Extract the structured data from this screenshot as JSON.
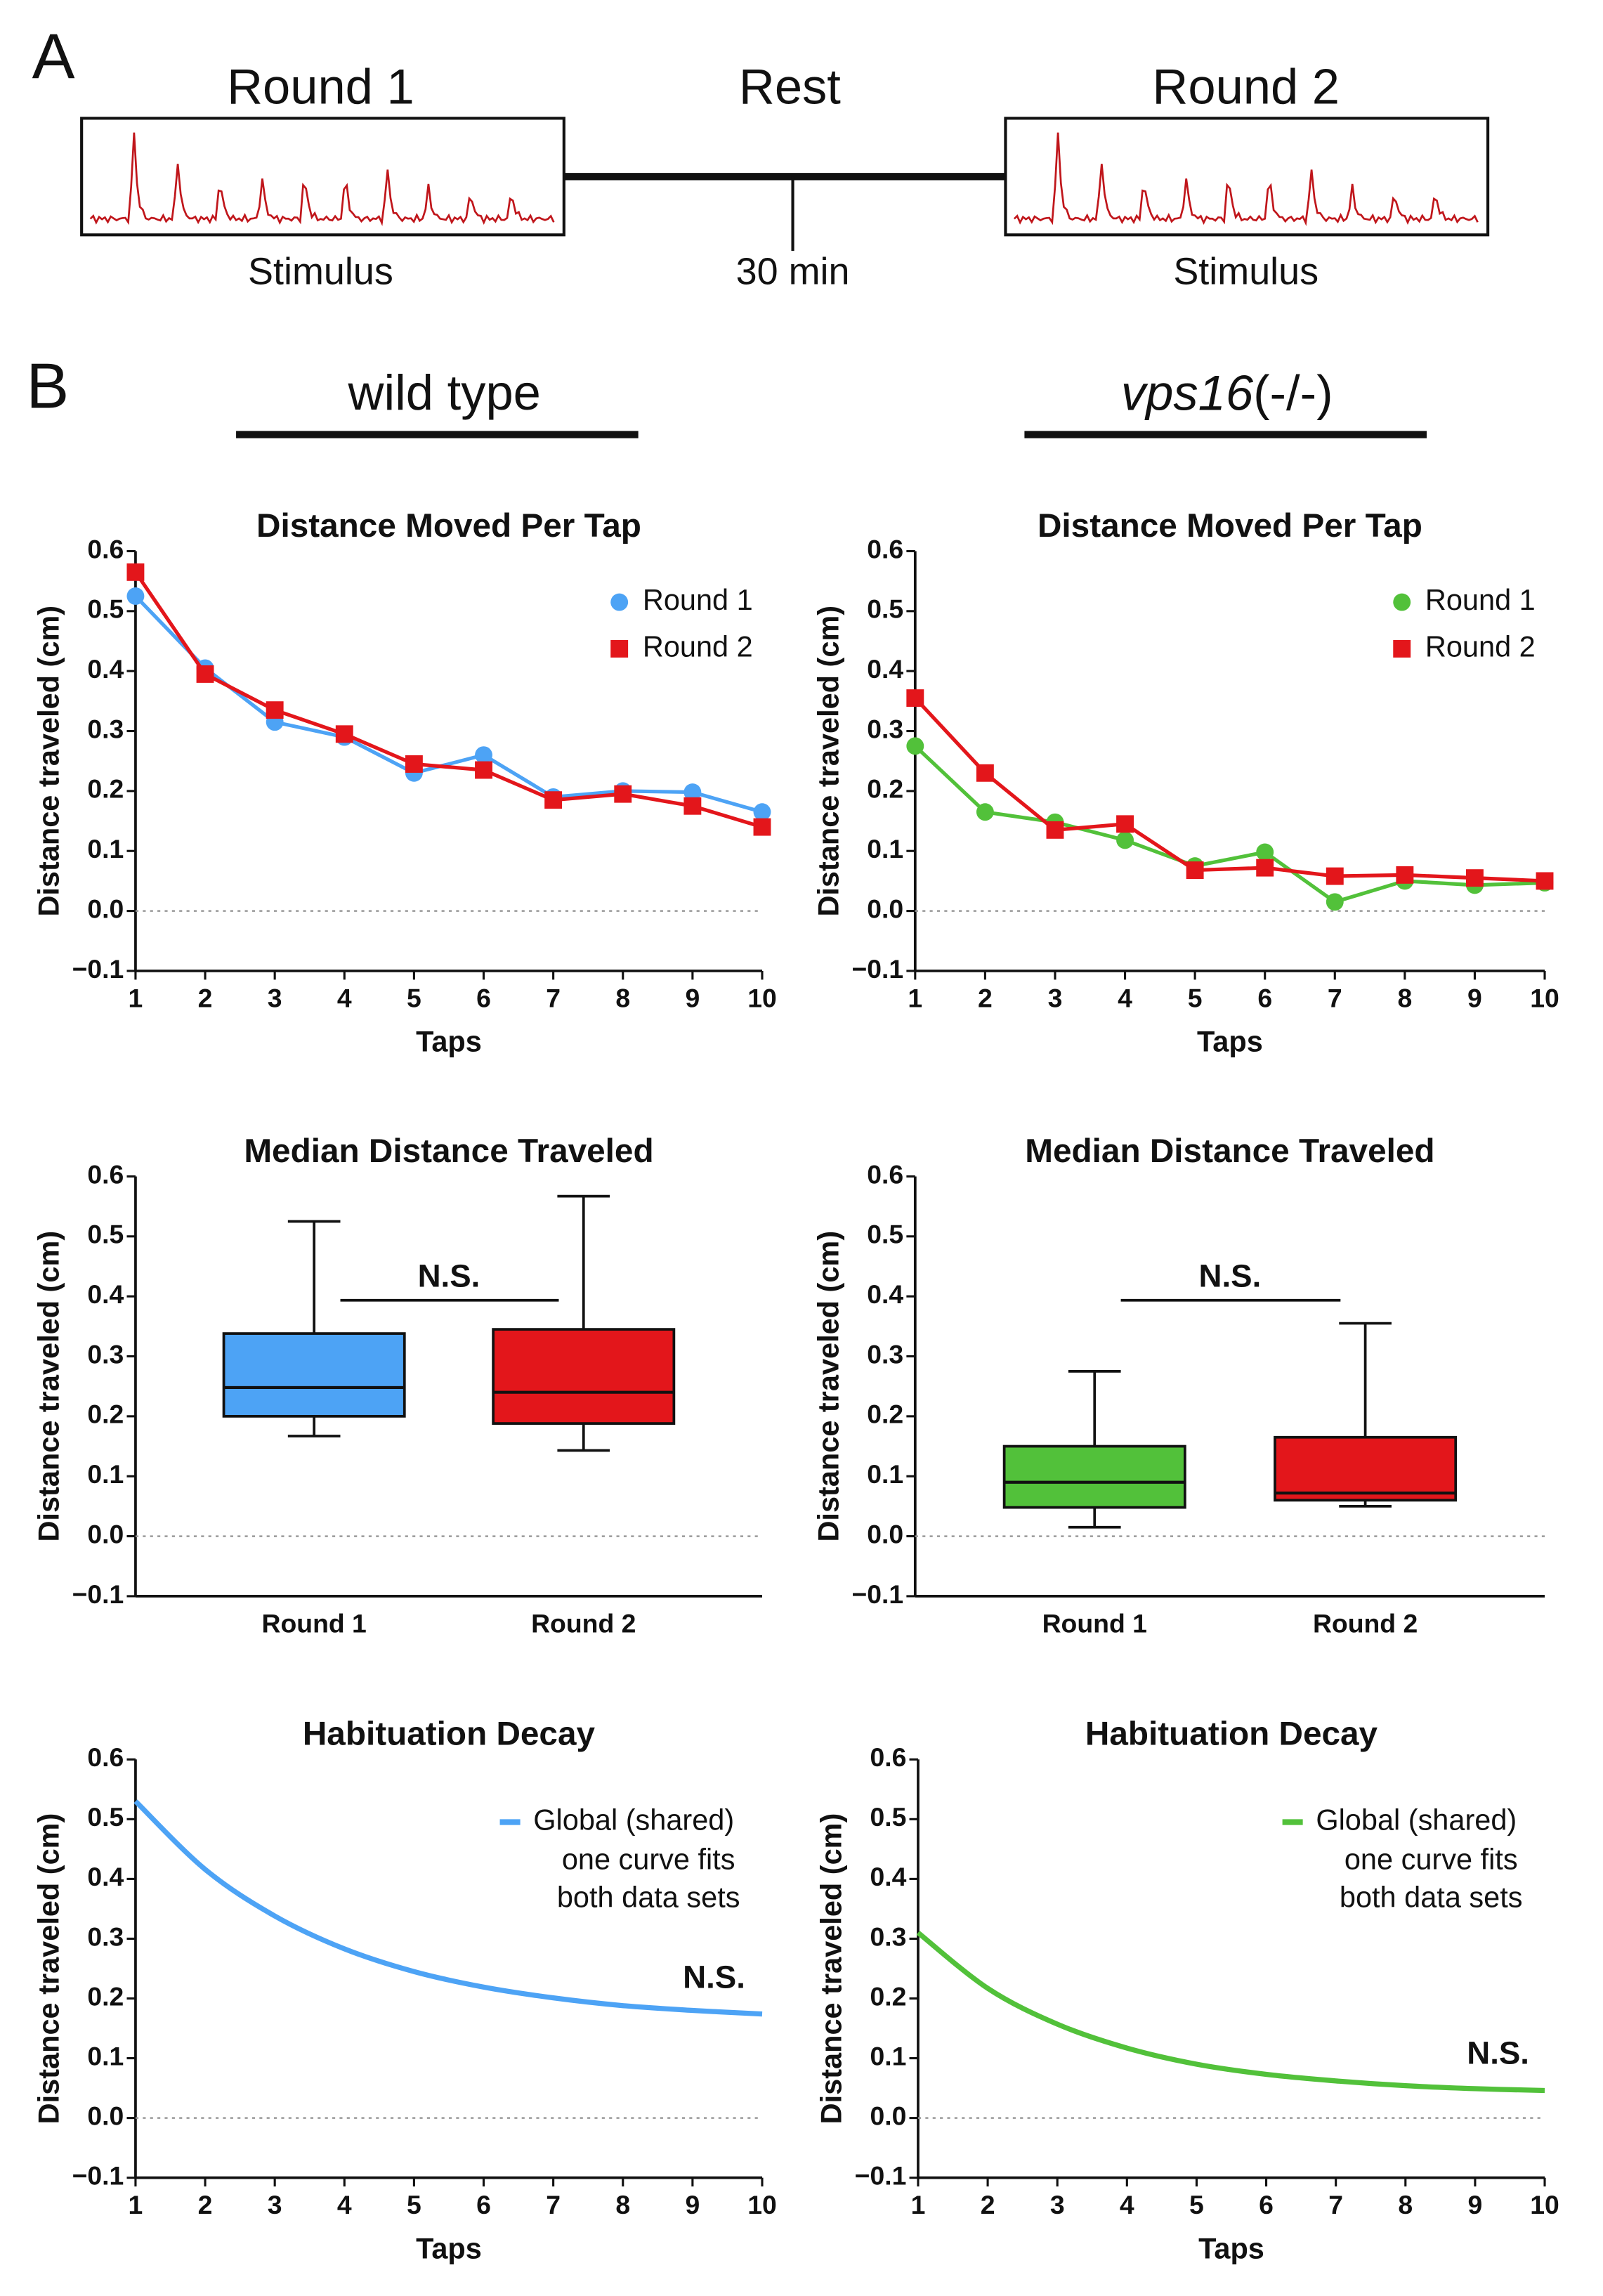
{
  "figure": {
    "panel_a": "A",
    "round_1": "Round 1",
    "rest": "Rest",
    "round_2": "Round 2",
    "stimulus_1": "Stimulus",
    "rest_duration": "30 min",
    "stimulus_2": "Stimulus",
    "panel_b": "B",
    "wild_type": "wild type",
    "mutant_name": "vps16",
    "mutant_suffix": "(-/-)"
  },
  "chart_data": [
    {
      "type": "line",
      "title": "Distance Moved Per Tap",
      "ylabel": "Distance traveled (cm)",
      "xlabel": "Taps",
      "x": [
        1,
        2,
        3,
        4,
        5,
        6,
        7,
        8,
        9,
        10
      ],
      "series": [
        {
          "name": "Round 1",
          "color": "#4da3f5",
          "marker": "circle",
          "values": [
            0.525,
            0.405,
            0.315,
            0.29,
            0.23,
            0.26,
            0.19,
            0.2,
            0.198,
            0.165
          ]
        },
        {
          "name": "Round 2",
          "color": "#e3161b",
          "marker": "square",
          "values": [
            0.565,
            0.395,
            0.335,
            0.295,
            0.245,
            0.235,
            0.185,
            0.195,
            0.175,
            0.14
          ]
        }
      ],
      "xlim": [
        1,
        10
      ],
      "xticks": [
        1,
        2,
        3,
        4,
        5,
        6,
        7,
        8,
        9,
        10
      ],
      "ylim": [
        -0.1,
        0.6
      ],
      "yticks": [
        {
          "value": -0.1,
          "label": "−0.1"
        },
        {
          "value": 0,
          "label": "0.0"
        },
        0.1,
        0.2,
        0.3,
        0.4,
        0.5,
        0.6
      ],
      "zero_line": true,
      "legend": "upper right"
    },
    {
      "type": "line",
      "title": "Distance Moved Per Tap",
      "ylabel": "Distance traveled (cm)",
      "xlabel": "Taps",
      "x": [
        1,
        2,
        3,
        4,
        5,
        6,
        7,
        8,
        9,
        10
      ],
      "series": [
        {
          "name": "Round 1",
          "color": "#52c13a",
          "marker": "circle",
          "values": [
            0.275,
            0.165,
            0.148,
            0.118,
            0.075,
            0.098,
            0.015,
            0.05,
            0.043,
            0.047
          ]
        },
        {
          "name": "Round 2",
          "color": "#e3161b",
          "marker": "square",
          "values": [
            0.355,
            0.23,
            0.135,
            0.145,
            0.068,
            0.072,
            0.058,
            0.06,
            0.055,
            0.05
          ]
        }
      ],
      "xlim": [
        1,
        10
      ],
      "xticks": [
        1,
        2,
        3,
        4,
        5,
        6,
        7,
        8,
        9,
        10
      ],
      "ylim": [
        -0.1,
        0.6
      ],
      "yticks": [
        {
          "value": -0.1,
          "label": "−0.1"
        },
        {
          "value": 0,
          "label": "0.0"
        },
        0.1,
        0.2,
        0.3,
        0.4,
        0.5,
        0.6
      ],
      "zero_line": true,
      "legend": "upper right"
    },
    {
      "type": "box",
      "title": "Median Distance Traveled",
      "ylabel": "Distance traveled (cm)",
      "categories": [
        "Round 1",
        "Round 2"
      ],
      "colors": [
        "#4da3f5",
        "#e3161b"
      ],
      "boxes": [
        {
          "min": 0.167,
          "q1": 0.2,
          "median": 0.248,
          "q3": 0.338,
          "max": 0.525
        },
        {
          "min": 0.143,
          "q1": 0.188,
          "median": 0.24,
          "q3": 0.345,
          "max": 0.567
        }
      ],
      "significance": "N.S.",
      "ylim": [
        -0.1,
        0.6
      ],
      "yticks": [
        {
          "value": -0.1,
          "label": "−0.1"
        },
        {
          "value": 0,
          "label": "0.0"
        },
        0.1,
        0.2,
        0.3,
        0.4,
        0.5,
        0.6
      ],
      "zero_line": true
    },
    {
      "type": "box",
      "title": "Median Distance Traveled",
      "ylabel": "Distance traveled (cm)",
      "categories": [
        "Round 1",
        "Round 2"
      ],
      "colors": [
        "#52c13a",
        "#e3161b"
      ],
      "boxes": [
        {
          "min": 0.015,
          "q1": 0.048,
          "median": 0.09,
          "q3": 0.15,
          "max": 0.275
        },
        {
          "min": 0.05,
          "q1": 0.06,
          "median": 0.072,
          "q3": 0.165,
          "max": 0.355
        }
      ],
      "significance": "N.S.",
      "ylim": [
        -0.1,
        0.6
      ],
      "yticks": [
        {
          "value": -0.1,
          "label": "−0.1"
        },
        {
          "value": 0,
          "label": "0.0"
        },
        0.1,
        0.2,
        0.3,
        0.4,
        0.5,
        0.6
      ],
      "zero_line": true
    },
    {
      "type": "curve",
      "title": "Habituation Decay",
      "ylabel": "Distance traveled (cm)",
      "xlabel": "Taps",
      "x": [
        1,
        2,
        3,
        4,
        5,
        6,
        7,
        8,
        9,
        10
      ],
      "series": [
        {
          "name": "Global (shared)",
          "color": "#4da3f5",
          "values": [
            0.53,
            0.416,
            0.338,
            0.283,
            0.245,
            0.219,
            0.201,
            0.188,
            0.18,
            0.174
          ]
        }
      ],
      "legend_note": [
        "one curve fits",
        "both data sets"
      ],
      "annotation": "N.S.",
      "xlim": [
        1,
        10
      ],
      "xticks": [
        1,
        2,
        3,
        4,
        5,
        6,
        7,
        8,
        9,
        10
      ],
      "ylim": [
        -0.1,
        0.6
      ],
      "yticks": [
        {
          "value": -0.1,
          "label": "−0.1"
        },
        {
          "value": 0,
          "label": "0.0"
        },
        0.1,
        0.2,
        0.3,
        0.4,
        0.5,
        0.6
      ],
      "zero_line": true,
      "legend": "upper right"
    },
    {
      "type": "curve",
      "title": "Habituation Decay",
      "ylabel": "Distance traveled (cm)",
      "xlabel": "Taps",
      "x": [
        1,
        2,
        3,
        4,
        5,
        6,
        7,
        8,
        9,
        10
      ],
      "series": [
        {
          "name": "Global (shared)",
          "color": "#52c13a",
          "values": [
            0.31,
            0.217,
            0.157,
            0.117,
            0.09,
            0.073,
            0.062,
            0.054,
            0.049,
            0.046
          ]
        }
      ],
      "legend_note": [
        "one curve fits",
        "both data sets"
      ],
      "annotation": "N.S.",
      "xlim": [
        1,
        10
      ],
      "xticks": [
        1,
        2,
        3,
        4,
        5,
        6,
        7,
        8,
        9,
        10
      ],
      "ylim": [
        -0.1,
        0.6
      ],
      "yticks": [
        {
          "value": -0.1,
          "label": "−0.1"
        },
        {
          "value": 0,
          "label": "0.0"
        },
        0.1,
        0.2,
        0.3,
        0.4,
        0.5,
        0.6
      ],
      "zero_line": true,
      "legend": "upper right"
    }
  ]
}
